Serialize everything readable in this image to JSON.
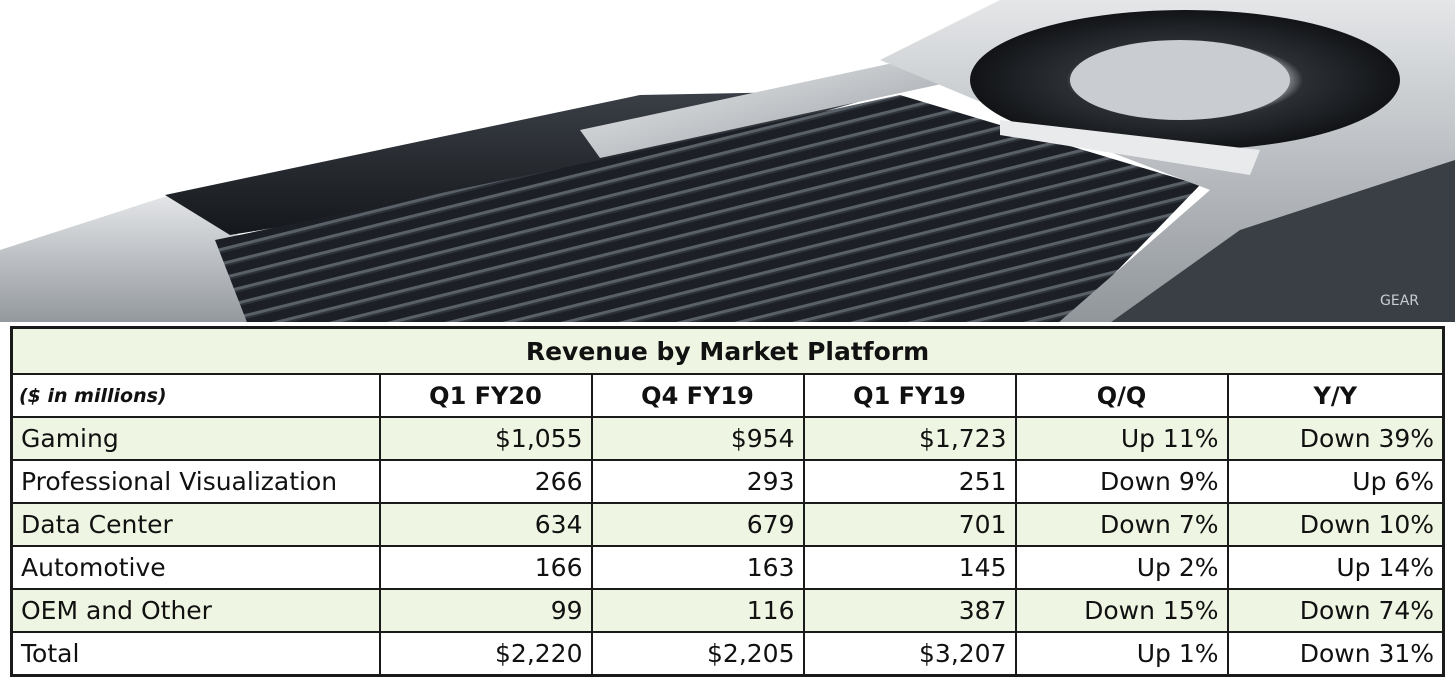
{
  "chart_data": {
    "type": "table",
    "title": "Revenue by Market Platform",
    "unit_label": "($ in millions)",
    "columns": [
      "Q1 FY20",
      "Q4 FY19",
      "Q1 FY19",
      "Q/Q",
      "Y/Y"
    ],
    "rows": [
      {
        "label": "Gaming",
        "values": [
          "$1,055",
          "$954",
          "$1,723",
          "Up 11%",
          "Down 39%"
        ],
        "shaded": true
      },
      {
        "label": "Professional Visualization",
        "values": [
          "266",
          "293",
          "251",
          "Down 9%",
          "Up 6%"
        ],
        "shaded": false
      },
      {
        "label": "Data Center",
        "values": [
          "634",
          "679",
          "701",
          "Down 7%",
          "Down 10%"
        ],
        "shaded": true
      },
      {
        "label": "Automotive",
        "values": [
          "166",
          "163",
          "145",
          "Up 2%",
          "Up 14%"
        ],
        "shaded": false
      },
      {
        "label": "OEM and Other",
        "values": [
          "99",
          "116",
          "387",
          "Down 15%",
          "Down 74%"
        ],
        "shaded": true
      },
      {
        "label": "Total",
        "values": [
          "$2,220",
          "$2,205",
          "$3,207",
          "Up 1%",
          "Down 31%"
        ],
        "shaded": false
      }
    ],
    "colors": {
      "shade": "#eef5e2",
      "border": "#1a1a1a"
    }
  },
  "hero": {
    "image": "gpu-cooler-photo",
    "watermark": "GEAR"
  }
}
